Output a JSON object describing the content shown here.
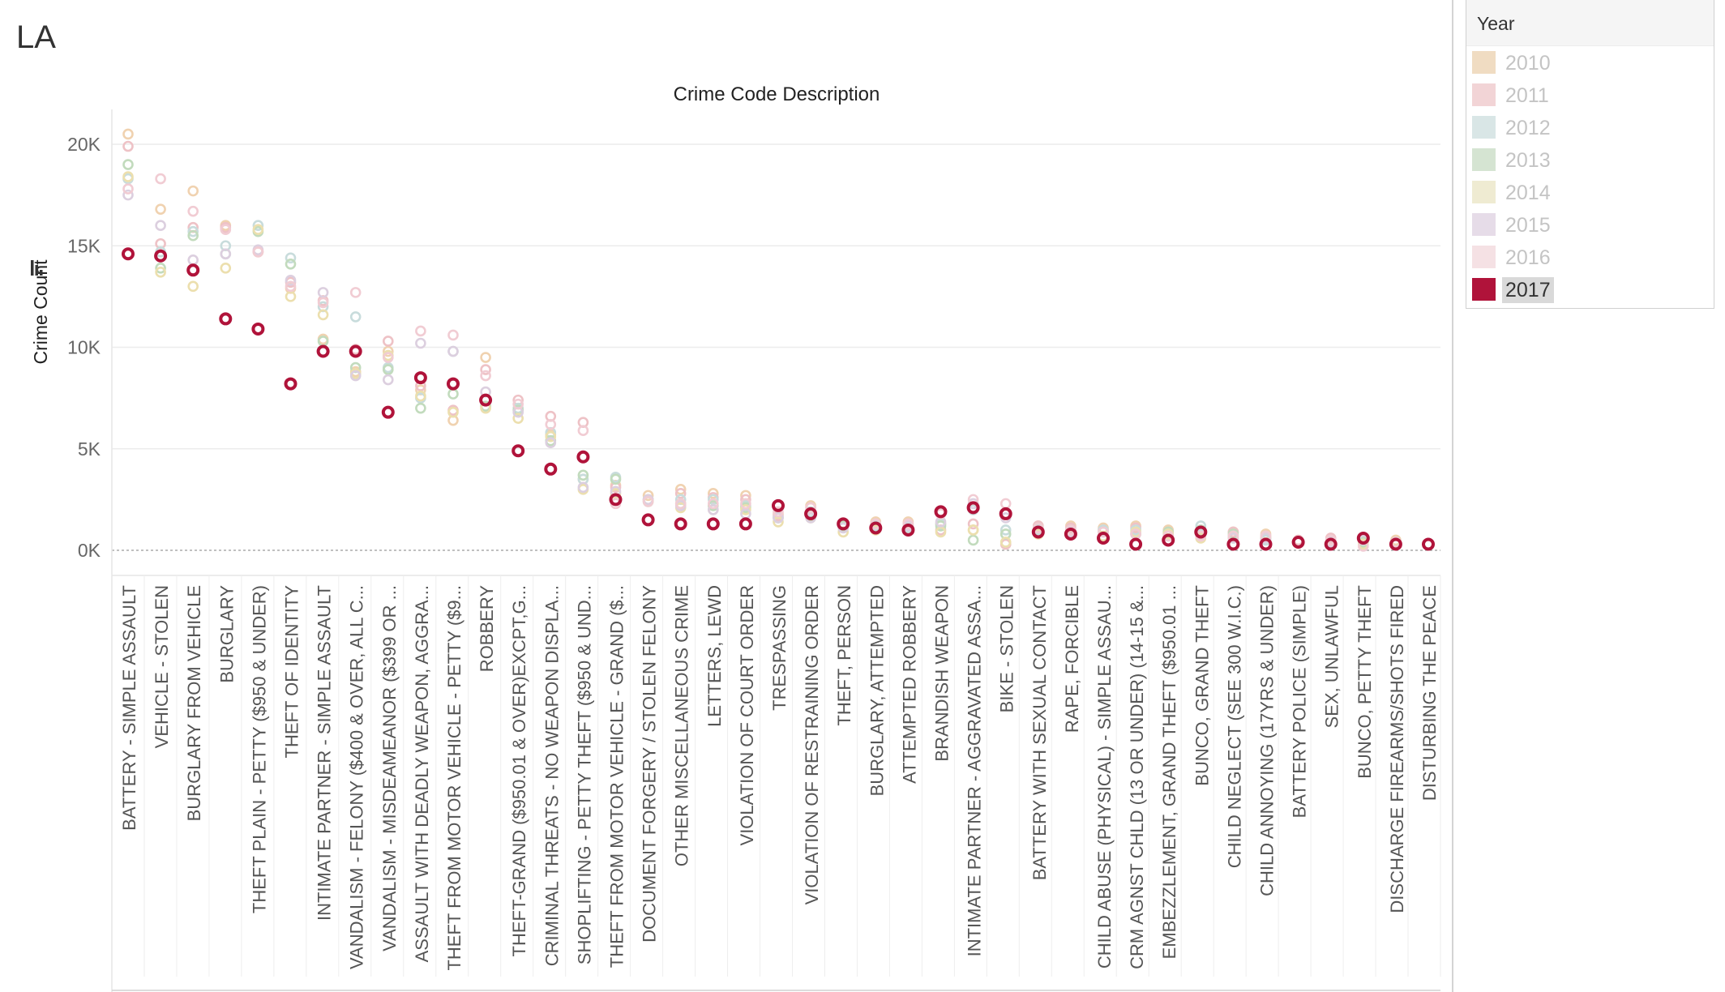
{
  "sheet": {
    "title": "LA"
  },
  "legend": {
    "title": "Year",
    "items": [
      {
        "label": "2010",
        "color": "#f0dcc2",
        "active": false
      },
      {
        "label": "2011",
        "color": "#f2d4d6",
        "active": false
      },
      {
        "label": "2012",
        "color": "#d9e6e6",
        "active": false
      },
      {
        "label": "2013",
        "color": "#d5e4d2",
        "active": false
      },
      {
        "label": "2014",
        "color": "#efebd2",
        "active": false
      },
      {
        "label": "2015",
        "color": "#e6dce8",
        "active": false
      },
      {
        "label": "2016",
        "color": "#f5e1e4",
        "active": false
      },
      {
        "label": "2017",
        "color": "#b0133a",
        "active": true
      }
    ]
  },
  "chart_data": {
    "type": "scatter",
    "title": "Crime Code Description",
    "xlabel": "",
    "ylabel": "Crime Count",
    "ylim": [
      -500,
      21000
    ],
    "yticks": [
      0,
      5000,
      10000,
      15000,
      20000
    ],
    "ytick_labels": [
      "0K",
      "5K",
      "10K",
      "15K",
      "20K"
    ],
    "grid": true,
    "legend_position": "right",
    "categories": [
      "BATTERY - SIMPLE ASSAULT",
      "VEHICLE - STOLEN",
      "BURGLARY FROM VEHICLE",
      "BURGLARY",
      "THEFT PLAIN - PETTY ($950 & UNDER)",
      "THEFT OF IDENTITY",
      "INTIMATE PARTNER - SIMPLE ASSAULT",
      "VANDALISM - FELONY ($400 & OVER, ALL C...",
      "VANDALISM - MISDEAMEANOR ($399 OR ...",
      "ASSAULT WITH DEADLY WEAPON, AGGRA...",
      "THEFT FROM MOTOR VEHICLE - PETTY ($9...",
      "ROBBERY",
      "THEFT-GRAND ($950.01 & OVER)EXCPT,G...",
      "CRIMINAL THREATS - NO WEAPON DISPLA...",
      "SHOPLIFTING - PETTY THEFT ($950 & UND...",
      "THEFT FROM MOTOR VEHICLE - GRAND ($...",
      "DOCUMENT FORGERY / STOLEN FELONY",
      "OTHER MISCELLANEOUS CRIME",
      "LETTERS, LEWD",
      "VIOLATION OF COURT ORDER",
      "TRESPASSING",
      "VIOLATION OF RESTRAINING ORDER",
      "THEFT, PERSON",
      "BURGLARY, ATTEMPTED",
      "ATTEMPTED ROBBERY",
      "BRANDISH WEAPON",
      "INTIMATE PARTNER - AGGRAVATED ASSA...",
      "BIKE - STOLEN",
      "BATTERY WITH SEXUAL CONTACT",
      "RAPE, FORCIBLE",
      "CHILD ABUSE (PHYSICAL) - SIMPLE ASSAU...",
      "CRM AGNST CHLD (13 OR UNDER) (14-15 &...",
      "EMBEZZLEMENT, GRAND THEFT ($950.01 ...",
      "BUNCO, GRAND THEFT",
      "CHILD NEGLECT (SEE 300 W.I.C.)",
      "CHILD ANNOYING (17YRS & UNDER)",
      "BATTERY POLICE (SIMPLE)",
      "SEX, UNLAWFUL",
      "BUNCO, PETTY THEFT",
      "DISCHARGE FIREARMS/SHOTS FIRED",
      "DISTURBING THE PEACE"
    ],
    "series": [
      {
        "name": "2010",
        "color": "#f0d2b0",
        "values": [
          20500,
          16800,
          17700,
          16000,
          14700,
          12900,
          10400,
          8800,
          9800,
          7900,
          6400,
          9500,
          6900,
          5700,
          3500,
          3200,
          2700,
          3000,
          2800,
          2700,
          1800,
          2200,
          1300,
          1400,
          1400,
          1300,
          1000,
          300,
          1200,
          1200,
          1100,
          1200,
          1000,
          900,
          900,
          800,
          400,
          500,
          600,
          500,
          300
        ]
      },
      {
        "name": "2011",
        "color": "#eec2c6",
        "values": [
          19900,
          15100,
          15900,
          15900,
          14700,
          13200,
          12300,
          9900,
          10300,
          8100,
          6900,
          8900,
          7400,
          6600,
          6300,
          3100,
          2500,
          2800,
          2600,
          2500,
          1700,
          2100,
          1200,
          1300,
          1300,
          1000,
          1300,
          300,
          1200,
          1100,
          1000,
          1100,
          900,
          800,
          900,
          700,
          500,
          600,
          500,
          400,
          300
        ]
      },
      {
        "name": "2012",
        "color": "#c8dcdc",
        "values": [
          18300,
          14700,
          15700,
          15000,
          16000,
          14400,
          12000,
          11500,
          9000,
          7500,
          9800,
          7100,
          7000,
          5800,
          3500,
          3600,
          2400,
          2500,
          2500,
          2200,
          1600,
          1900,
          1300,
          1200,
          1100,
          1300,
          2000,
          1000,
          1000,
          900,
          1000,
          1000,
          800,
          1200,
          700,
          500,
          400,
          400,
          500,
          400,
          300
        ]
      },
      {
        "name": "2013",
        "color": "#c2dbbd",
        "values": [
          19000,
          13900,
          15500,
          14600,
          15700,
          14100,
          10300,
          9000,
          8900,
          7000,
          7700,
          7100,
          6900,
          5400,
          3700,
          3500,
          2500,
          2300,
          2200,
          2100,
          1600,
          1700,
          1200,
          1100,
          1000,
          1200,
          500,
          800,
          1100,
          1000,
          900,
          800,
          900,
          1000,
          800,
          600,
          400,
          400,
          400,
          400,
          300
        ]
      },
      {
        "name": "2014",
        "color": "#ecdfae",
        "values": [
          18400,
          13700,
          13000,
          13900,
          15800,
          12500,
          11600,
          8700,
          9600,
          7600,
          6800,
          7000,
          6500,
          5600,
          3000,
          2800,
          2400,
          2100,
          2000,
          2000,
          1400,
          1600,
          900,
          1000,
          1000,
          900,
          1000,
          400,
          800,
          800,
          700,
          900,
          800,
          600,
          600,
          600,
          400,
          300,
          300,
          300,
          300
        ]
      },
      {
        "name": "2015",
        "color": "#dccfdf",
        "values": [
          17500,
          16000,
          14300,
          14600,
          14800,
          13300,
          12700,
          8600,
          8400,
          10200,
          9800,
          7800,
          6800,
          5300,
          3100,
          2900,
          2500,
          2200,
          2000,
          1800,
          1600,
          1600,
          1100,
          1300,
          1200,
          1400,
          2300,
          1600,
          900,
          900,
          900,
          800,
          700,
          700,
          600,
          600,
          400,
          400,
          500,
          400,
          300
        ]
      },
      {
        "name": "2016",
        "color": "#f1ccd3",
        "values": [
          17800,
          18300,
          16700,
          15800,
          14700,
          13000,
          12200,
          12700,
          9500,
          10800,
          10600,
          8600,
          7200,
          6200,
          5900,
          2300,
          2400,
          2300,
          2300,
          2300,
          1900,
          2100,
          1300,
          1300,
          1300,
          1800,
          2500,
          2300,
          1100,
          1000,
          900,
          800,
          700,
          700,
          700,
          700,
          400,
          500,
          200,
          400,
          300
        ]
      },
      {
        "name": "2017",
        "color": "#b0133a",
        "values": [
          14600,
          14500,
          13800,
          11400,
          10900,
          8200,
          9800,
          9800,
          6800,
          8500,
          8200,
          7400,
          4900,
          4000,
          4600,
          2500,
          1500,
          1300,
          1300,
          1300,
          2200,
          1800,
          1300,
          1100,
          1000,
          1900,
          2100,
          1800,
          900,
          800,
          600,
          300,
          500,
          900,
          300,
          300,
          400,
          300,
          600,
          300,
          300
        ]
      }
    ]
  }
}
